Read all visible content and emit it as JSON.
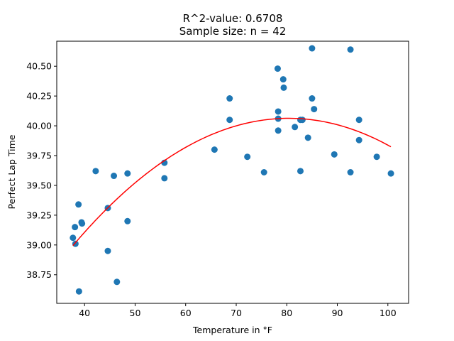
{
  "chart_data": {
    "type": "scatter",
    "title": "R^2-value: 0.6708",
    "subtitle": "Sample size: n = 42",
    "xlabel": "Temperature in °F",
    "ylabel": "Perfect Lap Time",
    "xlim": [
      34.5,
      104.1
    ],
    "ylim": [
      38.51,
      40.71
    ],
    "x_ticks": [
      40,
      50,
      60,
      70,
      80,
      90,
      100
    ],
    "x_tick_labels": [
      "40",
      "50",
      "60",
      "70",
      "80",
      "90",
      "100"
    ],
    "y_ticks": [
      38.75,
      39.0,
      39.25,
      39.5,
      39.75,
      40.0,
      40.25,
      40.5
    ],
    "y_tick_labels": [
      "38.75",
      "39.00",
      "39.25",
      "39.50",
      "39.75",
      "40.00",
      "40.25",
      "40.50"
    ],
    "grid": false,
    "scatter_color": "#1f77b4",
    "fit_color": "#ff0000",
    "points": [
      [
        37.7,
        39.06
      ],
      [
        38.1,
        39.15
      ],
      [
        38.2,
        39.01
      ],
      [
        38.8,
        39.34
      ],
      [
        39.4,
        39.19
      ],
      [
        39.5,
        39.18
      ],
      [
        38.9,
        38.61
      ],
      [
        42.2,
        39.62
      ],
      [
        44.6,
        39.31
      ],
      [
        44.6,
        38.95
      ],
      [
        45.8,
        39.58
      ],
      [
        46.4,
        38.69
      ],
      [
        48.5,
        39.6
      ],
      [
        48.5,
        39.2
      ],
      [
        55.8,
        39.69
      ],
      [
        55.8,
        39.56
      ],
      [
        65.7,
        39.8
      ],
      [
        68.7,
        40.23
      ],
      [
        68.7,
        40.05
      ],
      [
        72.2,
        39.74
      ],
      [
        75.5,
        39.61
      ],
      [
        78.2,
        40.48
      ],
      [
        78.3,
        40.12
      ],
      [
        78.3,
        40.06
      ],
      [
        78.3,
        39.96
      ],
      [
        79.3,
        40.39
      ],
      [
        79.4,
        40.32
      ],
      [
        81.6,
        39.99
      ],
      [
        82.7,
        40.05
      ],
      [
        82.7,
        39.62
      ],
      [
        83.1,
        40.05
      ],
      [
        84.2,
        39.9
      ],
      [
        85.0,
        40.65
      ],
      [
        85.0,
        40.23
      ],
      [
        85.4,
        40.14
      ],
      [
        89.4,
        39.76
      ],
      [
        92.6,
        40.64
      ],
      [
        92.6,
        39.61
      ],
      [
        94.3,
        40.05
      ],
      [
        94.3,
        39.88
      ],
      [
        97.8,
        39.74
      ],
      [
        100.6,
        39.6
      ]
    ],
    "fit_curve": {
      "type": "quadratic",
      "x_range": [
        37.7,
        100.6
      ],
      "vertex": [
        80.4,
        40.063
      ],
      "curvature": -0.000586
    }
  }
}
